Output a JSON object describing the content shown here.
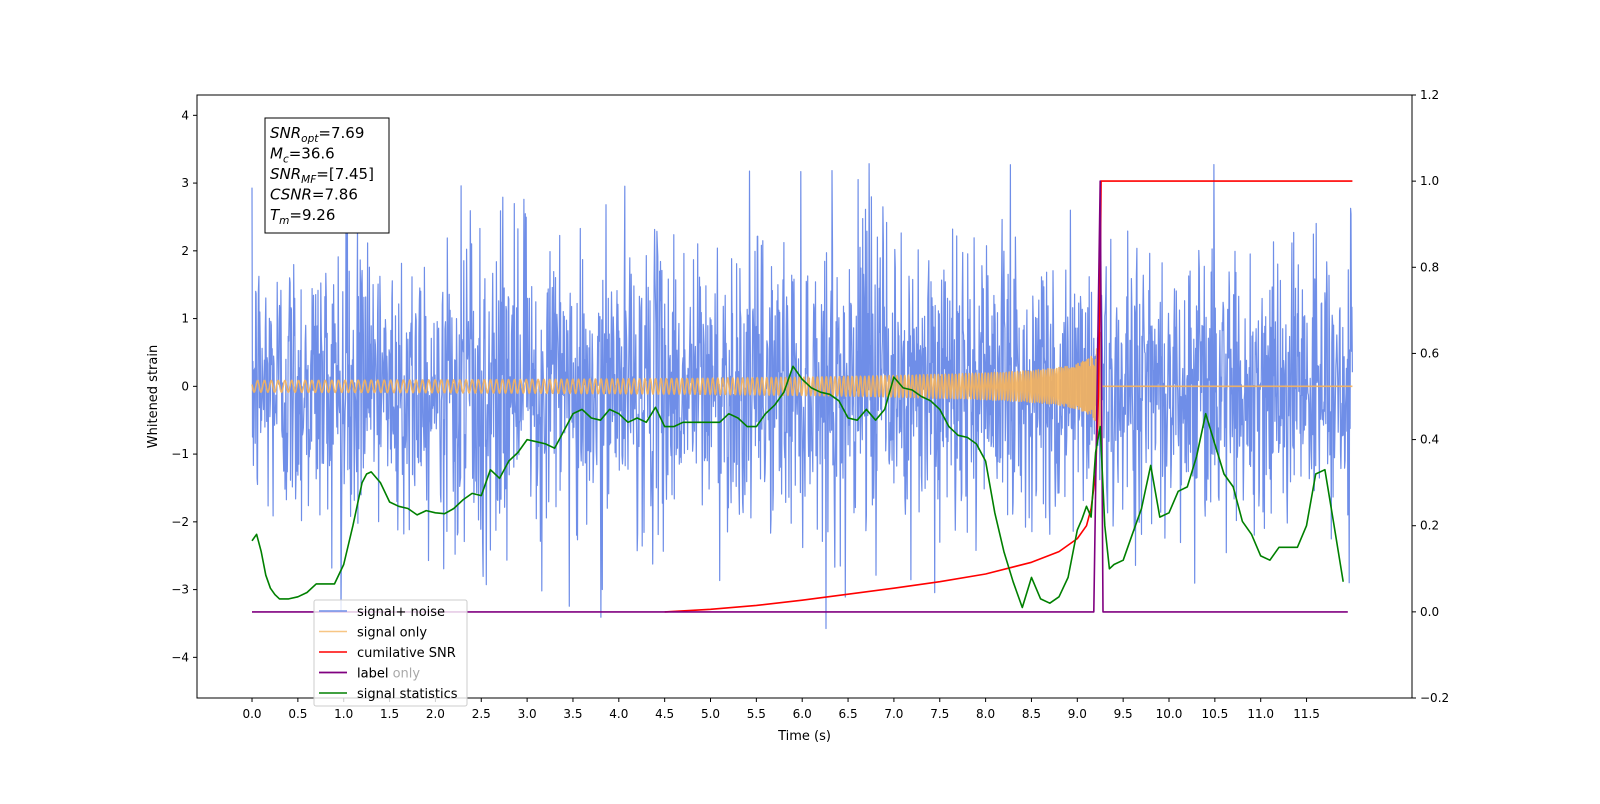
{
  "chart_data": {
    "type": "line",
    "xlabel": "Time (s)",
    "ylabel": "Whitened strain",
    "xlim": [
      -0.6,
      12.65
    ],
    "ylim": [
      -4.6,
      4.3
    ],
    "y2lim": [
      -0.2,
      1.2
    ],
    "x_ticks": [
      0.0,
      0.5,
      1.0,
      1.5,
      2.0,
      2.5,
      3.0,
      3.5,
      4.0,
      4.5,
      5.0,
      5.5,
      6.0,
      6.5,
      7.0,
      7.5,
      8.0,
      8.5,
      9.0,
      9.5,
      10.0,
      10.5,
      11.0,
      11.5
    ],
    "x_tick_labels": [
      "0.0",
      "0.5",
      "1.0",
      "1.5",
      "2.0",
      "2.5",
      "3.0",
      "3.5",
      "4.0",
      "4.5",
      "5.0",
      "5.5",
      "6.0",
      "6.5",
      "7.0",
      "7.5",
      "8.0",
      "8.5",
      "9.0",
      "9.5",
      "10.0",
      "10.5",
      "11.0",
      "11.5"
    ],
    "y_ticks": [
      -4,
      -3,
      -2,
      -1,
      0,
      1,
      2,
      3,
      4
    ],
    "y_tick_labels": [
      "−4",
      "−3",
      "−2",
      "−1",
      "0",
      "1",
      "2",
      "3",
      "4"
    ],
    "y2_ticks": [
      -0.2,
      0.0,
      0.2,
      0.4,
      0.6,
      0.8,
      1.0,
      1.2
    ],
    "y2_tick_labels": [
      "−0.2",
      "0.0",
      "0.2",
      "0.4",
      "0.6",
      "0.8",
      "1.0",
      "1.2"
    ],
    "grid": false,
    "legend_position": "bottom-left",
    "series": [
      {
        "name": "signal+ noise",
        "axis": "left",
        "color": "#6f8ee8",
        "generated": "random_noise",
        "x_range": [
          0.0,
          12.0
        ],
        "approx_range": [
          -3.6,
          3.9
        ]
      },
      {
        "name": "signal only",
        "axis": "left",
        "color": "#f5b35c",
        "generated": "chirp",
        "x_range": [
          0.0,
          12.0
        ],
        "merger_time": 9.26,
        "peak_amplitude": 0.85
      },
      {
        "name": "cumilative SNR",
        "axis": "right",
        "color": "#ff0000",
        "x": [
          4.5,
          5.0,
          5.5,
          6.0,
          6.5,
          7.0,
          7.5,
          8.0,
          8.5,
          8.8,
          9.0,
          9.1,
          9.15,
          9.2,
          9.23,
          9.25,
          9.26,
          10.0,
          11.0,
          12.0
        ],
        "y": [
          0.0,
          0.006,
          0.015,
          0.027,
          0.041,
          0.055,
          0.07,
          0.088,
          0.115,
          0.14,
          0.17,
          0.2,
          0.24,
          0.32,
          0.5,
          0.78,
          1.0,
          1.0,
          1.0,
          1.0
        ]
      },
      {
        "name": "label",
        "axis": "right",
        "color": "#800080",
        "x": [
          0.0,
          9.15,
          9.18,
          9.25,
          9.28,
          11.95
        ],
        "y": [
          0.0,
          0.0,
          0.0,
          1.0,
          0.0,
          0.0
        ]
      },
      {
        "name": "label only",
        "axis": "right",
        "color": "#800080"
      },
      {
        "name": "signal statistics",
        "axis": "right",
        "color": "#008000",
        "x": [
          0.0,
          0.05,
          0.1,
          0.15,
          0.2,
          0.25,
          0.3,
          0.4,
          0.5,
          0.6,
          0.7,
          0.8,
          0.9,
          1.0,
          1.1,
          1.2,
          1.25,
          1.3,
          1.4,
          1.5,
          1.6,
          1.7,
          1.8,
          1.9,
          2.0,
          2.1,
          2.2,
          2.3,
          2.4,
          2.5,
          2.6,
          2.7,
          2.8,
          2.9,
          3.0,
          3.1,
          3.2,
          3.3,
          3.4,
          3.5,
          3.6,
          3.7,
          3.8,
          3.9,
          4.0,
          4.1,
          4.2,
          4.3,
          4.4,
          4.5,
          4.6,
          4.7,
          4.8,
          4.9,
          5.0,
          5.1,
          5.2,
          5.3,
          5.4,
          5.5,
          5.6,
          5.7,
          5.8,
          5.9,
          6.0,
          6.1,
          6.2,
          6.3,
          6.4,
          6.5,
          6.6,
          6.7,
          6.8,
          6.9,
          7.0,
          7.1,
          7.2,
          7.3,
          7.4,
          7.5,
          7.6,
          7.7,
          7.8,
          7.9,
          8.0,
          8.1,
          8.2,
          8.3,
          8.4,
          8.5,
          8.6,
          8.7,
          8.8,
          8.9,
          9.0,
          9.05,
          9.1,
          9.15,
          9.2,
          9.25,
          9.3,
          9.35,
          9.4,
          9.5,
          9.6,
          9.7,
          9.8,
          9.9,
          10.0,
          10.1,
          10.2,
          10.3,
          10.4,
          10.5,
          10.6,
          10.7,
          10.8,
          10.9,
          11.0,
          11.1,
          11.2,
          11.3,
          11.4,
          11.5,
          11.6,
          11.7,
          11.8,
          11.9
        ],
        "y": [
          0.165,
          0.18,
          0.14,
          0.085,
          0.055,
          0.04,
          0.03,
          0.03,
          0.035,
          0.045,
          0.065,
          0.065,
          0.065,
          0.11,
          0.2,
          0.3,
          0.32,
          0.325,
          0.3,
          0.255,
          0.245,
          0.24,
          0.225,
          0.235,
          0.23,
          0.228,
          0.24,
          0.26,
          0.275,
          0.27,
          0.33,
          0.31,
          0.35,
          0.37,
          0.4,
          0.395,
          0.39,
          0.38,
          0.42,
          0.46,
          0.47,
          0.45,
          0.445,
          0.47,
          0.46,
          0.44,
          0.45,
          0.44,
          0.475,
          0.43,
          0.43,
          0.44,
          0.44,
          0.44,
          0.44,
          0.44,
          0.46,
          0.45,
          0.43,
          0.43,
          0.46,
          0.48,
          0.51,
          0.57,
          0.54,
          0.52,
          0.51,
          0.505,
          0.49,
          0.45,
          0.445,
          0.47,
          0.445,
          0.47,
          0.545,
          0.52,
          0.515,
          0.5,
          0.49,
          0.47,
          0.43,
          0.41,
          0.405,
          0.39,
          0.35,
          0.23,
          0.14,
          0.07,
          0.01,
          0.08,
          0.03,
          0.02,
          0.035,
          0.08,
          0.19,
          0.215,
          0.245,
          0.22,
          0.37,
          0.43,
          0.2,
          0.1,
          0.11,
          0.12,
          0.18,
          0.24,
          0.34,
          0.22,
          0.23,
          0.28,
          0.29,
          0.36,
          0.46,
          0.39,
          0.32,
          0.29,
          0.21,
          0.18,
          0.13,
          0.12,
          0.15,
          0.15,
          0.15,
          0.2,
          0.32,
          0.33,
          0.2,
          0.07
        ]
      }
    ],
    "annotation_lines": [
      {
        "symbol": "SNR",
        "sub": "opt",
        "text": "=7.69"
      },
      {
        "symbol": "M",
        "sub": "c",
        "text": "=36.6"
      },
      {
        "symbol": "SNR",
        "sub": "MF",
        "text": "=[7.45]"
      },
      {
        "symbol": "CSNR",
        "sub": "",
        "text": "=7.86"
      },
      {
        "symbol": "T",
        "sub": "m",
        "text": "=9.26"
      }
    ]
  }
}
